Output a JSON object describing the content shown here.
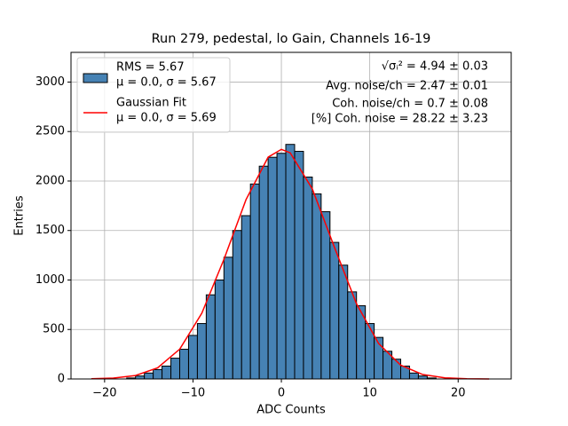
{
  "chart_data": {
    "type": "histogram",
    "title": "Run 279, pedestal, lo Gain, Channels 16-19",
    "xlabel": "ADC Counts",
    "ylabel": "Entries",
    "bins": [
      -17.5,
      -16.5,
      -15.5,
      -14.5,
      -13.5,
      -12.5,
      -11.5,
      -10.5,
      -9.5,
      -8.5,
      -7.5,
      -6.5,
      -5.5,
      -4.5,
      -3.5,
      -2.5,
      -1.5,
      -0.5,
      0.5,
      1.5,
      2.5,
      3.5,
      4.5,
      5.5,
      6.5,
      7.5,
      8.5,
      9.5,
      10.5,
      11.5,
      12.5,
      13.5,
      14.5,
      15.5,
      16.5,
      17.5
    ],
    "counts": [
      10,
      30,
      60,
      95,
      130,
      210,
      300,
      440,
      560,
      850,
      1000,
      1230,
      1500,
      1650,
      1970,
      2150,
      2240,
      2280,
      2370,
      2300,
      2040,
      1870,
      1690,
      1380,
      1150,
      880,
      740,
      560,
      420,
      280,
      200,
      130,
      60,
      30,
      10
    ],
    "color": "#4682b4",
    "edgecolor": "#000000",
    "hist_legend": [
      "RMS = 5.67",
      "μ = 0.0, σ = 5.67"
    ],
    "fit": {
      "legend": [
        "Gaussian Fit",
        "μ = 0.0, σ = 5.69"
      ],
      "color": "#ff0000",
      "x": [
        -21.5,
        -19,
        -16.5,
        -14,
        -11.5,
        -9,
        -6.5,
        -4,
        -1.5,
        0,
        1,
        3.5,
        6,
        8.5,
        11,
        13.5,
        16,
        18.5,
        21,
        23.5
      ],
      "values": [
        1.8,
        8.8,
        34.6,
        112.6,
        301,
        664,
        1208,
        1812,
        2241,
        2320,
        2285,
        1920,
        1331,
        760,
        358,
        139,
        44.5,
        11.7,
        2.6,
        0.5
      ]
    },
    "annotations": [
      "√σᵢ² = 4.94 ± 0.03",
      "Avg. noise/ch = 2.47 ± 0.01",
      "Coh. noise/ch = 0.7 ± 0.08",
      "[%] Coh. noise = 28.22 ± 3.23"
    ],
    "xlim": [
      -23.8,
      26.0
    ],
    "ylim": [
      0,
      3300
    ],
    "xticks": [
      {
        "value": -20,
        "label": "−20"
      },
      {
        "value": -10,
        "label": "−10"
      },
      0,
      10,
      20
    ],
    "yticks": [
      0,
      500,
      1000,
      1500,
      2000,
      2500,
      3000
    ],
    "grid": true,
    "legend_loc": "upper left"
  }
}
